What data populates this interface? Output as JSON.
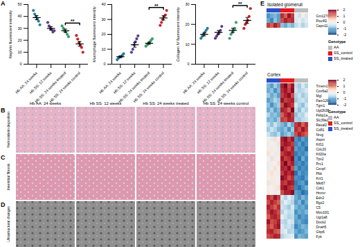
{
  "chart_data": [
    {
      "type": "scatter",
      "marker": "dot",
      "ylabel": "Nephrin fluorescent intensity",
      "categories": [
        "Hb AA: 24 weeks",
        "Hb SS: 12 weeks",
        "Hb SS: 24 weeks treated",
        "Hb SS: 24 weeks control"
      ],
      "colors": [
        "#2b7a9e",
        "#5c3d8f",
        "#3f9e6e",
        "#c9252c"
      ],
      "points": [
        [
          45,
          42,
          40,
          38,
          36,
          33
        ],
        [
          35,
          32,
          30,
          29,
          27,
          28
        ],
        [
          32,
          30,
          28,
          27,
          25,
          23
        ],
        [
          24,
          21,
          18,
          16,
          14,
          10
        ]
      ],
      "means": [
        39,
        30,
        28,
        17
      ],
      "sem": [
        1.7,
        1.5,
        1.4,
        2.0
      ],
      "ylim": [
        0,
        50
      ],
      "yticks": [
        0,
        10,
        20,
        30,
        40,
        50
      ],
      "annotations": [
        {
          "text": "**",
          "between": [
            "Hb SS: 24 weeks treated",
            "Hb SS: 24 weeks control"
          ]
        }
      ]
    },
    {
      "type": "scatter",
      "marker": "dot",
      "ylabel": "Macrophage fluorescent intensity",
      "categories": [
        "Hb AA: 24 weeks",
        "Hb SS: 12 weeks",
        "Hb SS: 24 weeks treated",
        "Hb SS: 24 weeks control"
      ],
      "colors": [
        "#2b7a9e",
        "#5c3d8f",
        "#3f9e6e",
        "#c9252c"
      ],
      "points": [
        [
          3,
          4,
          5,
          5,
          6,
          7
        ],
        [
          8,
          10,
          13,
          15,
          17,
          19
        ],
        [
          12,
          13,
          14,
          15,
          16,
          17
        ],
        [
          26,
          28,
          30,
          32,
          33,
          36
        ]
      ],
      "means": [
        5,
        13,
        14,
        31
      ],
      "sem": [
        0.6,
        1.6,
        0.7,
        1.4
      ],
      "ylim": [
        0,
        40
      ],
      "yticks": [
        0,
        10,
        20,
        30,
        40
      ],
      "annotations": [
        {
          "text": "**",
          "between": [
            "Hb SS: 24 weeks treated",
            "Hb SS: 24 weeks control"
          ]
        }
      ]
    },
    {
      "type": "scatter",
      "marker": "dot",
      "ylabel": "Collagen IV fluorescent intensity",
      "categories": [
        "Hb AA: 24 weeks",
        "Hb SS: 12 weeks",
        "Hb SS: 24 weeks treated",
        "Hb SS: 24 weeks control"
      ],
      "colors": [
        "#2b7a9e",
        "#5c3d8f",
        "#3f9e6e",
        "#c9252c"
      ],
      "points": [
        [
          13,
          14,
          15,
          16,
          17,
          18
        ],
        [
          13,
          14,
          15,
          16,
          17,
          19
        ],
        [
          13,
          15,
          16,
          17,
          18,
          21
        ],
        [
          18,
          20,
          21,
          22,
          24,
          28
        ]
      ],
      "means": [
        15,
        16,
        17,
        22
      ],
      "sem": [
        0.8,
        0.9,
        1.1,
        1.5
      ],
      "ylim": [
        0,
        30
      ],
      "yticks": [
        0,
        10,
        20,
        30
      ],
      "annotations": [
        {
          "text": "**",
          "between": [
            "Hb SS: 24 weeks treated",
            "Hb SS: 24 weeks control"
          ]
        }
      ]
    },
    {
      "type": "heatmap",
      "title": "Isolated glomeruli",
      "rows": [
        "Gm12789",
        "Pou4f2",
        "Capn11"
      ],
      "column_genotype": [
        "SS_treated",
        "SS_treated",
        "SS_treated",
        "SS_treated",
        "SS_control",
        "SS_control",
        "SS_control",
        "SS_control",
        "AA",
        "AA",
        "AA",
        "AA"
      ],
      "cells": [
        [
          -1.2,
          -1.0,
          -0.9,
          -1.1,
          1.5,
          1.2,
          1.7,
          1.4,
          -0.2,
          -0.4,
          0.1,
          -0.3
        ],
        [
          -1.0,
          -1.3,
          -0.8,
          -1.1,
          1.3,
          1.6,
          1.4,
          1.5,
          -0.3,
          -0.1,
          -0.4,
          -0.2
        ],
        [
          1.4,
          1.2,
          1.6,
          1.3,
          -0.8,
          -1.0,
          -0.7,
          -0.9,
          -0.5,
          -0.3,
          -0.6,
          -0.4
        ]
      ],
      "colorbar": {
        "range": [
          -2,
          2
        ],
        "ticks": [
          -2,
          -1,
          0,
          1,
          2
        ]
      },
      "legend_title": "Genotype",
      "groups": [
        {
          "name": "AA",
          "color": "#bdbdbd"
        },
        {
          "name": "SS_control",
          "color": "#e41a1c"
        },
        {
          "name": "SS_treated",
          "color": "#2b50c8"
        }
      ]
    },
    {
      "type": "heatmap",
      "title": "Cortex",
      "rows": [
        "Tmem178b",
        "Cox6a2",
        "Mgl",
        "Fam126b",
        "Tgm1",
        "Ugt2b38",
        "Fkbp1a",
        "Slc39a1",
        "Rasal2",
        "Cd81",
        "Nrcg",
        "Aspm",
        "Kif11",
        "Cdc20",
        "Kif20a",
        "Tpx2",
        "Prc1",
        "Cenpf",
        "Pbk",
        "Knl1",
        "Mki67",
        "Cdk1",
        "Hmmr",
        "Edn2",
        "Rgs2",
        "C5",
        "Mov10l1",
        "Ugt1a8",
        "Dock2",
        "Dnah5",
        "Gbp6",
        "Fyb"
      ],
      "column_genotype": [
        "SS_treated",
        "SS_treated",
        "SS_treated",
        "SS_treated",
        "SS_control",
        "SS_control",
        "SS_control",
        "SS_control",
        "AA",
        "AA",
        "AA",
        "AA"
      ],
      "cells": [
        [
          -0.9,
          -1.1,
          -0.7,
          -1.0,
          1.6,
          1.9,
          1.3,
          1.7,
          -0.5,
          -0.7,
          -0.3,
          -0.6
        ],
        [
          -1.0,
          -0.8,
          -1.2,
          -0.9,
          1.5,
          1.7,
          1.4,
          1.8,
          -0.4,
          -0.6,
          -0.5,
          -0.3
        ],
        [
          -0.7,
          -1.0,
          -0.8,
          -1.1,
          1.4,
          1.6,
          1.8,
          1.3,
          -0.6,
          -0.4,
          -0.7,
          -0.5
        ],
        [
          -1.1,
          -0.9,
          -0.6,
          -0.8,
          1.7,
          1.4,
          1.5,
          1.6,
          -0.7,
          -0.5,
          -0.4,
          -0.6
        ],
        [
          -0.8,
          -1.2,
          -0.9,
          -0.7,
          1.3,
          1.8,
          1.6,
          1.4,
          -0.3,
          -0.6,
          -0.8,
          -0.4
        ],
        [
          -1.0,
          -0.7,
          -1.1,
          -0.9,
          1.6,
          1.5,
          1.2,
          1.9,
          -0.5,
          -0.8,
          -0.4,
          -0.6
        ],
        [
          -0.6,
          -0.9,
          -0.8,
          -1.0,
          1.2,
          1.5,
          1.7,
          1.4,
          -0.8,
          -0.5,
          -0.6,
          -0.2
        ],
        [
          -0.9,
          -0.8,
          -1.0,
          -0.7,
          1.4,
          1.3,
          1.6,
          1.5,
          -0.6,
          -0.7,
          -0.5,
          -0.4
        ],
        [
          -0.5,
          -0.8,
          -0.4,
          -0.7,
          -0.9,
          -1.1,
          -0.6,
          -1.0,
          1.4,
          1.6,
          1.2,
          1.5
        ],
        [
          -0.7,
          -0.4,
          -0.6,
          -0.9,
          -1.0,
          -0.8,
          -1.2,
          -0.7,
          1.5,
          1.3,
          1.7,
          1.4
        ],
        [
          -0.4,
          -0.7,
          -0.8,
          -0.5,
          -1.1,
          -0.9,
          -0.7,
          -1.0,
          1.3,
          1.6,
          1.4,
          1.2
        ],
        [
          0.1,
          -0.2,
          0.3,
          0.0,
          1.6,
          1.8,
          1.4,
          1.7,
          -1.2,
          -1.4,
          -1.1,
          -1.3
        ],
        [
          0.2,
          0.0,
          -0.1,
          0.3,
          1.5,
          1.7,
          1.6,
          1.4,
          -1.3,
          -1.1,
          -1.4,
          -1.2
        ],
        [
          -0.1,
          0.2,
          0.1,
          -0.2,
          1.8,
          1.5,
          1.3,
          1.6,
          -1.1,
          -1.3,
          -1.2,
          -1.5
        ],
        [
          0.3,
          0.1,
          -0.2,
          0.2,
          1.4,
          1.6,
          1.7,
          1.5,
          -1.4,
          -1.2,
          -1.3,
          -1.1
        ],
        [
          0.0,
          -0.3,
          0.2,
          0.1,
          1.7,
          1.4,
          1.5,
          1.8,
          -1.2,
          -1.5,
          -1.0,
          -1.3
        ],
        [
          0.2,
          -0.1,
          0.0,
          0.3,
          1.5,
          1.9,
          1.4,
          1.6,
          -1.3,
          -1.2,
          -1.4,
          -1.2
        ],
        [
          -0.2,
          0.1,
          0.3,
          0.0,
          1.6,
          1.5,
          1.8,
          1.3,
          -1.1,
          -1.4,
          -1.2,
          -1.3
        ],
        [
          0.1,
          0.3,
          -0.1,
          0.2,
          1.4,
          1.7,
          1.5,
          1.7,
          -1.5,
          -1.1,
          -1.3,
          -1.2
        ],
        [
          0.0,
          0.2,
          0.1,
          -0.1,
          1.8,
          1.6,
          1.3,
          1.5,
          -1.2,
          -1.3,
          -1.4,
          -1.1
        ],
        [
          0.3,
          -0.2,
          0.2,
          0.1,
          1.5,
          1.4,
          1.7,
          1.6,
          -1.4,
          -1.2,
          -1.1,
          -1.4
        ],
        [
          -0.1,
          0.0,
          0.2,
          0.3,
          1.6,
          1.8,
          1.5,
          1.4,
          -1.3,
          -1.5,
          -1.2,
          -1.0
        ],
        [
          0.2,
          0.1,
          -0.2,
          0.0,
          1.3,
          1.6,
          1.6,
          1.8,
          -1.1,
          -1.2,
          -1.5,
          -1.3
        ],
        [
          1.5,
          1.3,
          1.7,
          1.4,
          -0.3,
          -0.6,
          -0.2,
          -0.5,
          -1.0,
          -1.2,
          -0.9,
          -1.1
        ],
        [
          1.3,
          1.6,
          1.4,
          1.2,
          -0.5,
          -0.2,
          -0.4,
          -0.6,
          -1.1,
          -0.9,
          -1.3,
          -1.0
        ],
        [
          1.6,
          1.4,
          1.2,
          1.5,
          -0.4,
          -0.5,
          -0.7,
          -0.3,
          -0.9,
          -1.1,
          -1.0,
          -1.2
        ],
        [
          1.4,
          1.7,
          1.5,
          1.3,
          -0.6,
          -0.3,
          -0.5,
          -0.4,
          -1.2,
          -1.0,
          -1.1,
          -0.9
        ],
        [
          1.2,
          1.5,
          1.6,
          1.4,
          -0.2,
          -0.4,
          -0.6,
          -0.5,
          -1.0,
          -1.3,
          -1.1,
          -1.2
        ],
        [
          1.7,
          1.3,
          1.4,
          1.6,
          -0.5,
          -0.6,
          -0.3,
          -0.4,
          -1.1,
          -1.0,
          -1.2,
          -1.3
        ],
        [
          1.4,
          1.2,
          1.5,
          1.7,
          -0.3,
          -0.5,
          -0.4,
          -0.6,
          -1.3,
          -1.1,
          -0.9,
          -1.0
        ],
        [
          1.5,
          1.6,
          1.3,
          1.2,
          -0.4,
          -0.2,
          -0.6,
          -0.5,
          -1.0,
          -1.2,
          -1.1,
          -0.9
        ],
        [
          1.3,
          1.4,
          1.6,
          1.5,
          -0.6,
          -0.4,
          -0.3,
          -0.2,
          -1.2,
          -0.9,
          -1.0,
          -1.1
        ]
      ],
      "colorbar": {
        "range": [
          -2,
          2
        ],
        "ticks": [
          -2,
          -1,
          0,
          1,
          2
        ]
      },
      "legend_title": "Genotype",
      "groups": [
        {
          "name": "AA",
          "color": "#bdbdbd"
        },
        {
          "name": "SS_control",
          "color": "#e41a1c"
        },
        {
          "name": "SS_treated",
          "color": "#2b50c8"
        }
      ]
    }
  ],
  "panel_letters": [
    "A",
    "B",
    "C",
    "D",
    "E"
  ],
  "image_panels": {
    "columns": [
      "Hb AA: 24 weeks",
      "Hb SS: 12 weeks",
      "Hb SS: 24 weeks treated",
      "Hb SS: 24 weeks control"
    ],
    "rows": [
      "Hemosiderin deposition",
      "Interstitial fibrosis",
      "Ultrastructural changes"
    ]
  }
}
